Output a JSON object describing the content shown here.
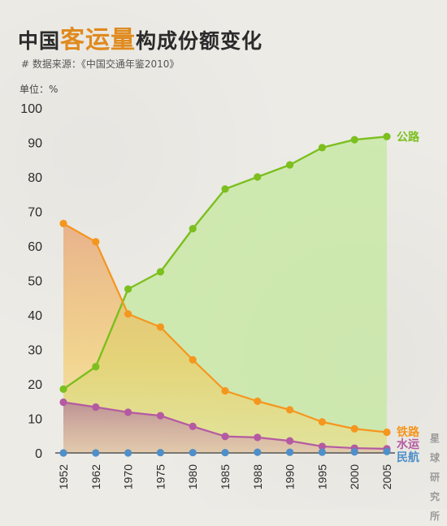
{
  "header": {
    "title_prefix": "中国",
    "title_accent": "客运量",
    "title_suffix": "构成份额变化",
    "source": "# 数据来源：《中国交通年鉴2010》",
    "unit": "单位：%"
  },
  "watermark": [
    "星",
    "球",
    "研",
    "究",
    "所"
  ],
  "colors": {
    "road": "#7cbf1e",
    "rail": "#f5961e",
    "water": "#b55aa2",
    "air": "#4f8fc9",
    "text": "#2b2b2b"
  },
  "chart_data": {
    "type": "area",
    "title": "中国客运量构成份额变化",
    "ylabel": "单位：%",
    "ylim": [
      0,
      100
    ],
    "yticks": [
      0,
      10,
      20,
      30,
      40,
      50,
      60,
      70,
      80,
      90,
      100
    ],
    "categories": [
      "1952",
      "1962",
      "1970",
      "1975",
      "1980",
      "1985",
      "1988",
      "1990",
      "1995",
      "2000",
      "2005"
    ],
    "series": [
      {
        "name": "公路",
        "color": "#7cbf1e",
        "values": [
          18.5,
          25,
          47.5,
          52.5,
          65,
          76.5,
          80,
          83.5,
          88.5,
          90.8,
          91.7
        ]
      },
      {
        "name": "铁路",
        "color": "#f5961e",
        "values": [
          66.5,
          61.2,
          40.3,
          36.5,
          27,
          18,
          15,
          12.5,
          9,
          7,
          6
        ]
      },
      {
        "name": "水运",
        "color": "#b55aa2",
        "values": [
          14.7,
          13.3,
          11.8,
          10.8,
          7.7,
          4.8,
          4.5,
          3.5,
          1.9,
          1.4,
          1.2
        ]
      },
      {
        "name": "民航",
        "color": "#4f8fc9",
        "values": [
          0,
          0,
          0,
          0.1,
          0.1,
          0.1,
          0.2,
          0.2,
          0.2,
          0.3,
          0.4
        ]
      }
    ],
    "grid": false,
    "legend": "right-end labels"
  }
}
